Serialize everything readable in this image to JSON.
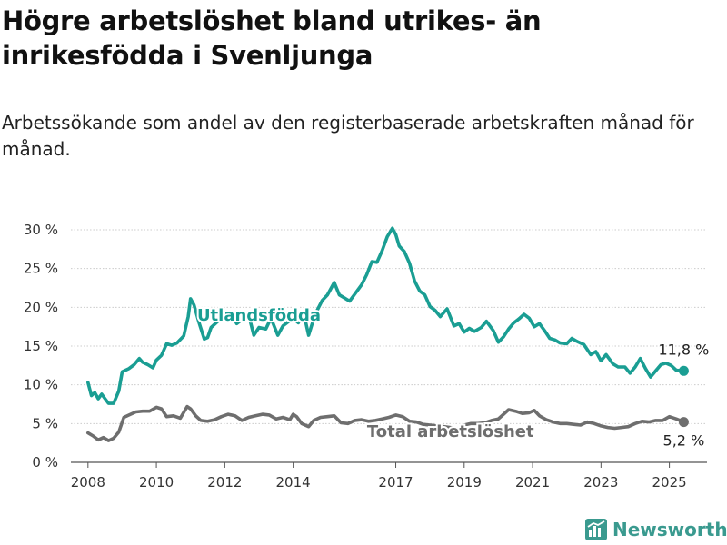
{
  "header": {
    "title": "Högre arbetslöshet bland utrikes- än inrikesfödda i Svenljunga",
    "subtitle": "Arbetssökande som andel av den registerbaserade arbetskraften månad för månad."
  },
  "brand": {
    "name": "Newsworthy",
    "icon": "newsworthy-logo-icon",
    "color": "#3a9a8f"
  },
  "chart_data": {
    "type": "line",
    "title": "Högre arbetslöshet bland utrikes- än inrikesfödda i Svenljunga",
    "subtitle": "Arbetssökande som andel av den registerbaserade arbetskraften månad för månad.",
    "xlabel": "",
    "ylabel": "",
    "x_ticks": [
      2008,
      2010,
      2012,
      2014,
      2017,
      2019,
      2021,
      2023,
      2025
    ],
    "y_ticks": [
      0,
      5,
      10,
      15,
      20,
      25,
      30
    ],
    "y_tick_labels": [
      "0 %",
      "5 %",
      "10 %",
      "15 %",
      "20 %",
      "25 %",
      "30 %"
    ],
    "ylim": [
      0,
      30
    ],
    "xlim": [
      2007.5,
      2026.1
    ],
    "grid": true,
    "series": [
      {
        "name": "Utlandsfödda",
        "color": "#1a9e93",
        "end_label": "11,8 %",
        "end_value": 11.8,
        "points": [
          [
            2008.0,
            10.3
          ],
          [
            2008.1,
            8.6
          ],
          [
            2008.2,
            9.0
          ],
          [
            2008.3,
            8.2
          ],
          [
            2008.4,
            8.8
          ],
          [
            2008.5,
            8.2
          ],
          [
            2008.6,
            7.6
          ],
          [
            2008.75,
            7.6
          ],
          [
            2008.9,
            9.2
          ],
          [
            2009.0,
            11.7
          ],
          [
            2009.2,
            12.1
          ],
          [
            2009.35,
            12.6
          ],
          [
            2009.5,
            13.4
          ],
          [
            2009.6,
            12.9
          ],
          [
            2009.75,
            12.6
          ],
          [
            2009.9,
            12.2
          ],
          [
            2010.0,
            13.2
          ],
          [
            2010.15,
            13.8
          ],
          [
            2010.3,
            15.3
          ],
          [
            2010.45,
            15.1
          ],
          [
            2010.6,
            15.4
          ],
          [
            2010.8,
            16.3
          ],
          [
            2010.93,
            18.8
          ],
          [
            2011.0,
            21.1
          ],
          [
            2011.1,
            20.3
          ],
          [
            2011.25,
            18.0
          ],
          [
            2011.4,
            15.9
          ],
          [
            2011.5,
            16.1
          ],
          [
            2011.6,
            17.4
          ],
          [
            2011.8,
            18.2
          ],
          [
            2011.95,
            18.6
          ],
          [
            2012.1,
            18.3
          ],
          [
            2012.2,
            19.2
          ],
          [
            2012.35,
            17.9
          ],
          [
            2012.5,
            18.4
          ],
          [
            2012.7,
            19.0
          ],
          [
            2012.85,
            16.4
          ],
          [
            2013.0,
            17.4
          ],
          [
            2013.2,
            17.2
          ],
          [
            2013.35,
            18.6
          ],
          [
            2013.55,
            16.4
          ],
          [
            2013.7,
            17.6
          ],
          [
            2013.85,
            18.1
          ],
          [
            2014.0,
            18.6
          ],
          [
            2014.15,
            18.0
          ],
          [
            2014.3,
            19.4
          ],
          [
            2014.45,
            16.4
          ],
          [
            2014.55,
            17.8
          ],
          [
            2014.7,
            19.6
          ],
          [
            2014.85,
            20.9
          ],
          [
            2015.0,
            21.6
          ],
          [
            2015.2,
            23.2
          ],
          [
            2015.35,
            21.6
          ],
          [
            2015.5,
            21.2
          ],
          [
            2015.65,
            20.8
          ],
          [
            2015.8,
            21.7
          ],
          [
            2016.0,
            22.9
          ],
          [
            2016.15,
            24.2
          ],
          [
            2016.3,
            25.9
          ],
          [
            2016.45,
            25.8
          ],
          [
            2016.6,
            27.3
          ],
          [
            2016.75,
            29.1
          ],
          [
            2016.9,
            30.2
          ],
          [
            2017.0,
            29.4
          ],
          [
            2017.1,
            27.9
          ],
          [
            2017.25,
            27.2
          ],
          [
            2017.4,
            25.7
          ],
          [
            2017.55,
            23.4
          ],
          [
            2017.7,
            22.1
          ],
          [
            2017.85,
            21.6
          ],
          [
            2018.0,
            20.1
          ],
          [
            2018.15,
            19.6
          ],
          [
            2018.3,
            18.8
          ],
          [
            2018.5,
            19.8
          ],
          [
            2018.7,
            17.6
          ],
          [
            2018.85,
            17.9
          ],
          [
            2019.0,
            16.8
          ],
          [
            2019.15,
            17.3
          ],
          [
            2019.3,
            16.9
          ],
          [
            2019.5,
            17.4
          ],
          [
            2019.65,
            18.2
          ],
          [
            2019.85,
            17.0
          ],
          [
            2020.0,
            15.5
          ],
          [
            2020.15,
            16.2
          ],
          [
            2020.3,
            17.2
          ],
          [
            2020.45,
            18.0
          ],
          [
            2020.6,
            18.5
          ],
          [
            2020.75,
            19.1
          ],
          [
            2020.9,
            18.6
          ],
          [
            2021.05,
            17.5
          ],
          [
            2021.2,
            17.9
          ],
          [
            2021.35,
            17.0
          ],
          [
            2021.5,
            16.0
          ],
          [
            2021.65,
            15.8
          ],
          [
            2021.8,
            15.4
          ],
          [
            2022.0,
            15.3
          ],
          [
            2022.15,
            16.0
          ],
          [
            2022.3,
            15.6
          ],
          [
            2022.5,
            15.2
          ],
          [
            2022.7,
            13.9
          ],
          [
            2022.85,
            14.3
          ],
          [
            2023.0,
            13.1
          ],
          [
            2023.15,
            13.9
          ],
          [
            2023.35,
            12.7
          ],
          [
            2023.5,
            12.3
          ],
          [
            2023.7,
            12.3
          ],
          [
            2023.85,
            11.5
          ],
          [
            2024.0,
            12.3
          ],
          [
            2024.15,
            13.4
          ],
          [
            2024.3,
            12.1
          ],
          [
            2024.45,
            11.0
          ],
          [
            2024.6,
            11.8
          ],
          [
            2024.75,
            12.6
          ],
          [
            2024.9,
            12.8
          ],
          [
            2025.05,
            12.5
          ],
          [
            2025.2,
            11.9
          ],
          [
            2025.42,
            11.8
          ]
        ]
      },
      {
        "name": "Total arbetslöshet",
        "color": "#6e6e6e",
        "end_label": "5,2 %",
        "end_value": 5.2,
        "points": [
          [
            2008.0,
            3.8
          ],
          [
            2008.15,
            3.4
          ],
          [
            2008.3,
            2.9
          ],
          [
            2008.45,
            3.2
          ],
          [
            2008.6,
            2.8
          ],
          [
            2008.75,
            3.1
          ],
          [
            2008.9,
            3.9
          ],
          [
            2009.05,
            5.8
          ],
          [
            2009.2,
            6.1
          ],
          [
            2009.4,
            6.5
          ],
          [
            2009.6,
            6.6
          ],
          [
            2009.8,
            6.6
          ],
          [
            2010.0,
            7.1
          ],
          [
            2010.15,
            6.9
          ],
          [
            2010.3,
            5.9
          ],
          [
            2010.5,
            6.0
          ],
          [
            2010.7,
            5.7
          ],
          [
            2010.9,
            7.2
          ],
          [
            2011.0,
            6.9
          ],
          [
            2011.15,
            6.0
          ],
          [
            2011.3,
            5.4
          ],
          [
            2011.5,
            5.3
          ],
          [
            2011.7,
            5.5
          ],
          [
            2011.9,
            5.9
          ],
          [
            2012.1,
            6.2
          ],
          [
            2012.3,
            6.0
          ],
          [
            2012.5,
            5.4
          ],
          [
            2012.7,
            5.8
          ],
          [
            2012.9,
            6.0
          ],
          [
            2013.1,
            6.2
          ],
          [
            2013.3,
            6.1
          ],
          [
            2013.5,
            5.6
          ],
          [
            2013.7,
            5.8
          ],
          [
            2013.9,
            5.5
          ],
          [
            2014.0,
            6.2
          ],
          [
            2014.1,
            5.9
          ],
          [
            2014.25,
            5.0
          ],
          [
            2014.45,
            4.6
          ],
          [
            2014.6,
            5.4
          ],
          [
            2014.8,
            5.8
          ],
          [
            2015.0,
            5.9
          ],
          [
            2015.2,
            6.0
          ],
          [
            2015.4,
            5.1
          ],
          [
            2015.6,
            5.0
          ],
          [
            2015.8,
            5.4
          ],
          [
            2016.0,
            5.5
          ],
          [
            2016.2,
            5.3
          ],
          [
            2016.4,
            5.4
          ],
          [
            2016.6,
            5.6
          ],
          [
            2016.8,
            5.8
          ],
          [
            2017.0,
            6.1
          ],
          [
            2017.2,
            5.9
          ],
          [
            2017.4,
            5.3
          ],
          [
            2017.6,
            5.2
          ],
          [
            2017.8,
            4.9
          ],
          [
            2018.0,
            4.8
          ],
          [
            2018.2,
            4.7
          ],
          [
            2018.4,
            4.6
          ],
          [
            2018.6,
            4.5
          ],
          [
            2018.8,
            4.3
          ],
          [
            2019.0,
            4.8
          ],
          [
            2019.2,
            5.0
          ],
          [
            2019.4,
            5.0
          ],
          [
            2019.6,
            5.1
          ],
          [
            2019.8,
            5.4
          ],
          [
            2020.0,
            5.6
          ],
          [
            2020.15,
            6.2
          ],
          [
            2020.3,
            6.8
          ],
          [
            2020.5,
            6.6
          ],
          [
            2020.7,
            6.3
          ],
          [
            2020.9,
            6.4
          ],
          [
            2021.05,
            6.7
          ],
          [
            2021.2,
            6.0
          ],
          [
            2021.4,
            5.5
          ],
          [
            2021.6,
            5.2
          ],
          [
            2021.8,
            5.0
          ],
          [
            2022.0,
            5.0
          ],
          [
            2022.2,
            4.9
          ],
          [
            2022.4,
            4.8
          ],
          [
            2022.6,
            5.2
          ],
          [
            2022.8,
            5.0
          ],
          [
            2023.0,
            4.7
          ],
          [
            2023.2,
            4.5
          ],
          [
            2023.4,
            4.4
          ],
          [
            2023.6,
            4.5
          ],
          [
            2023.8,
            4.6
          ],
          [
            2024.0,
            5.0
          ],
          [
            2024.2,
            5.3
          ],
          [
            2024.4,
            5.2
          ],
          [
            2024.6,
            5.4
          ],
          [
            2024.8,
            5.4
          ],
          [
            2025.0,
            5.9
          ],
          [
            2025.2,
            5.6
          ],
          [
            2025.42,
            5.2
          ]
        ]
      }
    ]
  }
}
